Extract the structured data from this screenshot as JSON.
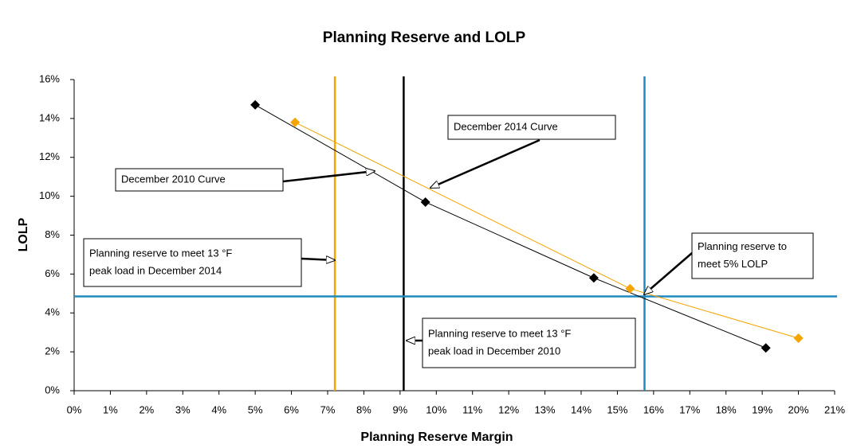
{
  "chart_data": {
    "type": "scatter",
    "title": "Planning Reserve and LOLP",
    "x_label": "Planning Reserve Margin",
    "y_label": "LOLP",
    "xlim": [
      0,
      21
    ],
    "ylim": [
      0,
      16
    ],
    "xticks": [
      {
        "value": 0,
        "label": "0%"
      },
      {
        "value": 1,
        "label": "1%"
      },
      {
        "value": 2,
        "label": "2%"
      },
      {
        "value": 3,
        "label": "3%"
      },
      {
        "value": 4,
        "label": "4%"
      },
      {
        "value": 5,
        "label": "5%"
      },
      {
        "value": 6,
        "label": "6%"
      },
      {
        "value": 7,
        "label": "7%"
      },
      {
        "value": 8,
        "label": "8%"
      },
      {
        "value": 9,
        "label": "9%"
      },
      {
        "value": 10,
        "label": "10%"
      },
      {
        "value": 11,
        "label": "11%"
      },
      {
        "value": 12,
        "label": "12%"
      },
      {
        "value": 13,
        "label": "13%"
      },
      {
        "value": 14,
        "label": "14%"
      },
      {
        "value": 15,
        "label": "15%"
      },
      {
        "value": 16,
        "label": "16%"
      },
      {
        "value": 17,
        "label": "17%"
      },
      {
        "value": 18,
        "label": "18%"
      },
      {
        "value": 19,
        "label": "19%"
      },
      {
        "value": 20,
        "label": "20%"
      },
      {
        "value": 21,
        "label": "21%"
      }
    ],
    "yticks": [
      {
        "value": 0,
        "label": "0%"
      },
      {
        "value": 2,
        "label": "2%"
      },
      {
        "value": 4,
        "label": "4%"
      },
      {
        "value": 6,
        "label": "6%"
      },
      {
        "value": 8,
        "label": "8%"
      },
      {
        "value": 10,
        "label": "10%"
      },
      {
        "value": 12,
        "label": "12%"
      },
      {
        "value": 14,
        "label": "14%"
      },
      {
        "value": 16,
        "label": "16%"
      }
    ],
    "series": [
      {
        "color": "#000000",
        "x": [
          5.0,
          9.7,
          14.35,
          19.1
        ],
        "values": [
          14.7,
          9.7,
          5.8,
          2.2
        ]
      },
      {
        "color": "#f5a400",
        "x": [
          6.1,
          15.35,
          20.0
        ],
        "values": [
          13.8,
          5.25,
          2.7
        ]
      }
    ],
    "reference_lines": [
      {
        "axis": "x",
        "value": 7.2,
        "color": "#f5a400"
      },
      {
        "axis": "x",
        "value": 9.1,
        "color": "#000000"
      },
      {
        "axis": "x",
        "value": 15.75,
        "color": "#1f8ac0"
      },
      {
        "axis": "y",
        "value": 4.85,
        "color": "#1f8ac0"
      }
    ],
    "annotations": [
      {
        "lines": [
          "December 2014 Curve"
        ]
      },
      {
        "lines": [
          "December 2010 Curve"
        ]
      },
      {
        "lines": [
          "Planning reserve to meet 13 °F",
          "peak load in December 2014"
        ]
      },
      {
        "lines": [
          "Planning reserve to meet 13 °F",
          "peak load in December 2010"
        ]
      },
      {
        "lines": [
          "Planning reserve to",
          "meet 5% LOLP"
        ]
      }
    ]
  }
}
